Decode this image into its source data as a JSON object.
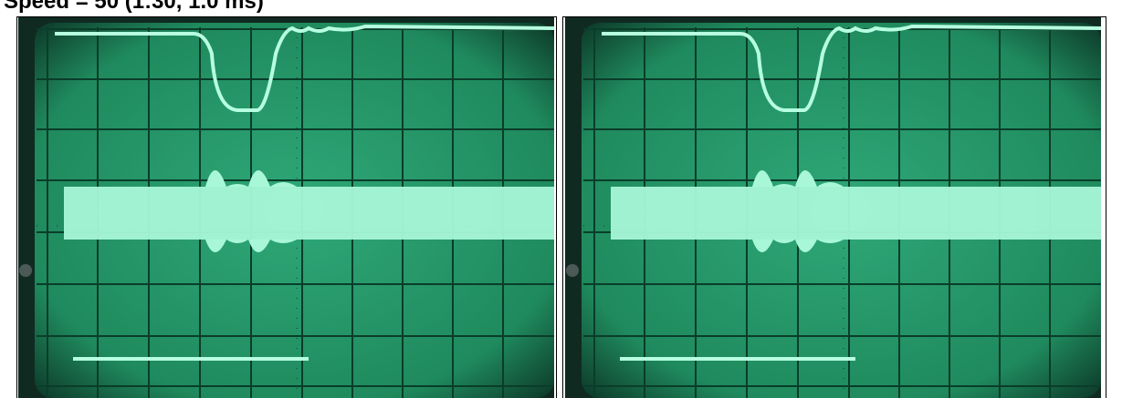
{
  "header": {
    "title": "Speed = 50 (1:30, 1.0 ms)"
  }
}
